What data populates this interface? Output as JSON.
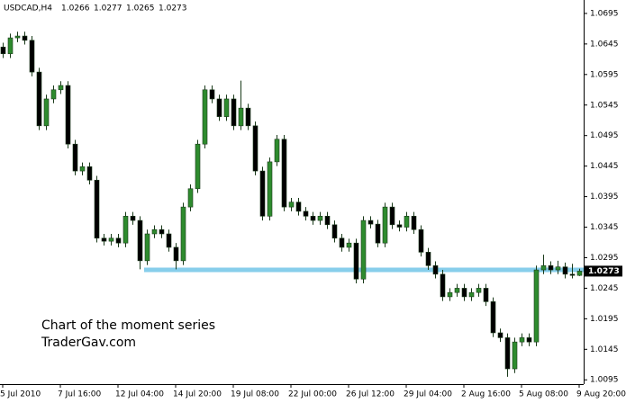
{
  "chart_data": {
    "type": "candlestick",
    "symbol": "USDCAD,H4",
    "annotations": [
      "Chart of the moment series",
      "TraderGav.com"
    ],
    "categories": [
      "5 Jul 2010",
      null,
      null,
      null,
      null,
      null,
      null,
      null,
      "7 Jul 16:00",
      null,
      null,
      null,
      null,
      null,
      null,
      null,
      "12 Jul 04:00",
      null,
      null,
      null,
      null,
      null,
      null,
      null,
      "14 Jul 20:00",
      null,
      null,
      null,
      null,
      null,
      null,
      null,
      "19 Jul 08:00",
      null,
      null,
      null,
      null,
      null,
      null,
      null,
      "22 Jul 00:00",
      null,
      null,
      null,
      null,
      null,
      null,
      null,
      "26 Jul 12:00",
      null,
      null,
      null,
      null,
      null,
      null,
      null,
      "29 Jul 04:00",
      null,
      null,
      null,
      null,
      null,
      null,
      null,
      "2 Aug 16:00",
      null,
      null,
      null,
      null,
      null,
      null,
      null,
      "5 Aug 08:00",
      null,
      null,
      null,
      null,
      null,
      null,
      null,
      "9 Aug 20:00"
    ],
    "open": [
      1.064,
      1.0629,
      1.0655,
      1.0658,
      1.0651,
      1.0599,
      1.0511,
      1.0555,
      1.057,
      1.0577,
      1.0481,
      1.0437,
      1.0444,
      1.0422,
      1.0327,
      1.0322,
      1.0327,
      1.0319,
      1.0363,
      1.0356,
      1.029,
      1.0334,
      1.0341,
      1.0334,
      1.0312,
      1.029,
      1.0378,
      1.0408,
      1.0481,
      1.057,
      1.0555,
      1.0526,
      1.0555,
      1.0511,
      1.054,
      1.0511,
      1.0437,
      1.0363,
      1.0452,
      1.0489,
      1.0378,
      1.0386,
      1.0371,
      1.0363,
      1.0356,
      1.0363,
      1.0349,
      1.0327,
      1.0312,
      1.0319,
      1.026,
      1.0356,
      1.035,
      1.0319,
      1.0378,
      1.0349,
      1.0345,
      1.0363,
      1.0341,
      1.0304,
      1.0282,
      1.0268,
      1.0231,
      1.0238,
      1.0245,
      1.0231,
      1.0238,
      1.0245,
      1.0223,
      1.0172,
      1.0164,
      1.0113,
      1.0157,
      1.0164,
      1.0157,
      1.0275,
      1.0282,
      1.0275,
      1.028,
      1.0268,
      1.0266
    ],
    "high": [
      1.0647,
      1.0662,
      1.0665,
      1.0665,
      1.0658,
      1.0606,
      1.0562,
      1.0577,
      1.0584,
      1.0584,
      1.0488,
      1.0451,
      1.0451,
      1.0429,
      1.0334,
      1.0334,
      1.0334,
      1.037,
      1.037,
      1.0363,
      1.0341,
      1.0348,
      1.0348,
      1.0341,
      1.0319,
      1.0385,
      1.0415,
      1.0488,
      1.0577,
      1.0577,
      1.0562,
      1.0562,
      1.0562,
      1.0585,
      1.0547,
      1.0518,
      1.0444,
      1.0459,
      1.0496,
      1.0496,
      1.0393,
      1.0393,
      1.0378,
      1.037,
      1.037,
      1.037,
      1.0356,
      1.0334,
      1.0326,
      1.0326,
      1.0363,
      1.0363,
      1.0357,
      1.0385,
      1.0385,
      1.0356,
      1.037,
      1.037,
      1.0348,
      1.0311,
      1.0289,
      1.0275,
      1.0245,
      1.0252,
      1.0252,
      1.0245,
      1.0252,
      1.0252,
      1.023,
      1.0179,
      1.0171,
      1.0164,
      1.0171,
      1.0171,
      1.0282,
      1.03,
      1.0289,
      1.029,
      1.0287,
      1.0285,
      1.0277
    ],
    "low": [
      1.0622,
      1.0622,
      1.0648,
      1.0644,
      1.0592,
      1.0504,
      1.0504,
      1.0548,
      1.0563,
      1.0474,
      1.043,
      1.043,
      1.0415,
      1.032,
      1.0315,
      1.0315,
      1.0312,
      1.0312,
      1.0349,
      1.0276,
      1.0283,
      1.0327,
      1.0327,
      1.0305,
      1.0276,
      1.0283,
      1.0371,
      1.0401,
      1.0474,
      1.0548,
      1.0519,
      1.0519,
      1.0504,
      1.0504,
      1.0504,
      1.043,
      1.0356,
      1.0356,
      1.0445,
      1.0371,
      1.0371,
      1.0364,
      1.0356,
      1.0349,
      1.0349,
      1.0342,
      1.032,
      1.0305,
      1.0305,
      1.0253,
      1.0253,
      1.0343,
      1.0312,
      1.0312,
      1.0342,
      1.0338,
      1.0338,
      1.0334,
      1.0297,
      1.0275,
      1.0261,
      1.0224,
      1.0224,
      1.0231,
      1.0224,
      1.0224,
      1.0231,
      1.0216,
      1.0165,
      1.0157,
      1.01,
      1.0106,
      1.015,
      1.015,
      1.015,
      1.0268,
      1.0268,
      1.0268,
      1.0261,
      1.0261,
      1.0265
    ],
    "close": [
      1.0629,
      1.0655,
      1.0658,
      1.0651,
      1.0599,
      1.0511,
      1.0555,
      1.057,
      1.0577,
      1.0481,
      1.0437,
      1.0444,
      1.0422,
      1.0327,
      1.0322,
      1.0327,
      1.0319,
      1.0363,
      1.0356,
      1.029,
      1.0334,
      1.0341,
      1.0334,
      1.0312,
      1.029,
      1.0378,
      1.0408,
      1.0481,
      1.057,
      1.0555,
      1.0526,
      1.0555,
      1.0511,
      1.054,
      1.0511,
      1.0437,
      1.0363,
      1.0452,
      1.0489,
      1.0378,
      1.0386,
      1.0371,
      1.0363,
      1.0356,
      1.0363,
      1.0349,
      1.0327,
      1.0312,
      1.0319,
      1.026,
      1.0356,
      1.035,
      1.0319,
      1.0378,
      1.0349,
      1.0345,
      1.0363,
      1.0341,
      1.0304,
      1.0282,
      1.0268,
      1.0231,
      1.0238,
      1.0245,
      1.0231,
      1.0238,
      1.0245,
      1.0223,
      1.0172,
      1.0164,
      1.0113,
      1.0157,
      1.0164,
      1.0157,
      1.0275,
      1.0282,
      1.0275,
      1.028,
      1.0268,
      1.0266,
      1.0273
    ],
    "hline": {
      "value": 1.0275,
      "color": "#87ceeb"
    },
    "up_color": "#2e8b2e",
    "down_color": "#000000",
    "wick_color": "#1a3a1a",
    "ylim": [
      1.0088,
      1.0717
    ],
    "yticks": [
      1.0695,
      1.0645,
      1.0595,
      1.0545,
      1.0495,
      1.0445,
      1.0395,
      1.0345,
      1.0295,
      1.0245,
      1.0195,
      1.0145,
      1.0095
    ],
    "grid": false
  }
}
